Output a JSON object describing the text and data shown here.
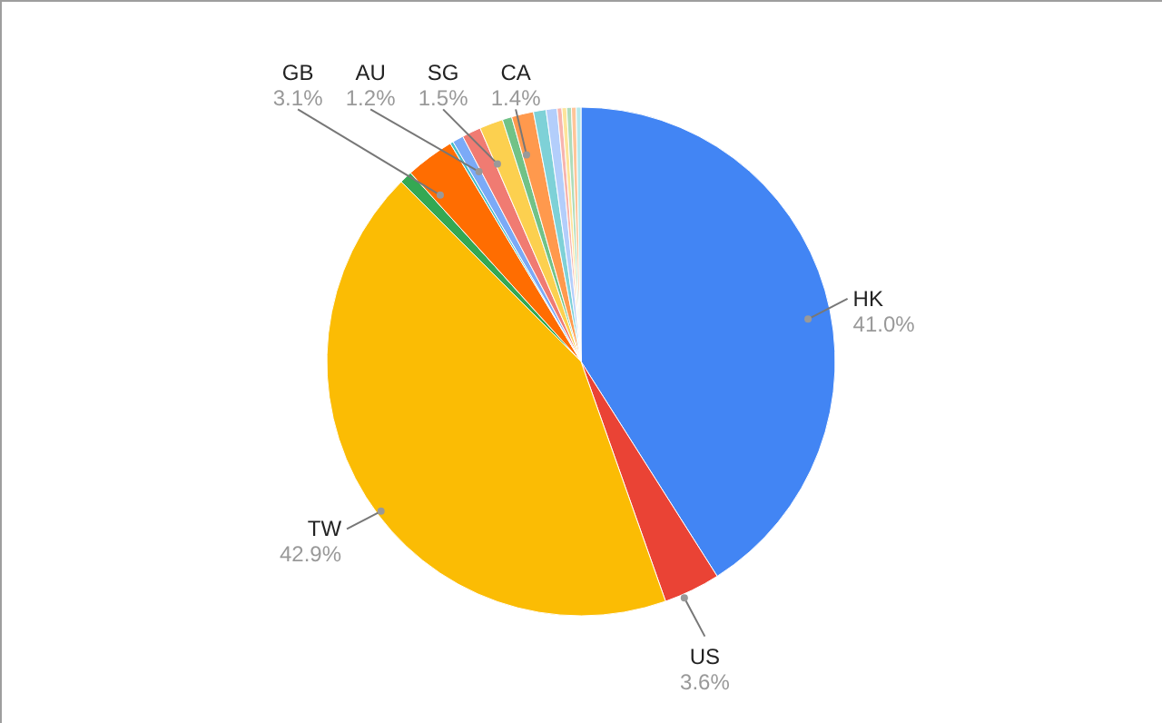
{
  "chart_data": {
    "type": "pie",
    "categories": [
      "HK",
      "US",
      "TW",
      null,
      "GB",
      null,
      null,
      "AU",
      "SG",
      null,
      "CA",
      null,
      null,
      null,
      null,
      null,
      null,
      null
    ],
    "values": [
      41.0,
      3.6,
      42.9,
      0.8,
      3.1,
      0.2,
      0.7,
      1.2,
      1.5,
      0.6,
      1.4,
      0.8,
      0.7,
      0.3,
      0.3,
      0.3,
      0.3,
      0.3
    ],
    "value_labels": [
      "41.0%",
      "3.6%",
      "42.9%",
      null,
      "3.1%",
      null,
      null,
      "1.2%",
      "1.5%",
      null,
      "1.4%",
      null,
      null,
      null,
      null,
      null,
      null,
      null
    ],
    "colors": [
      "#4285f4",
      "#ea4335",
      "#fbbc04",
      "#34a853",
      "#ff6d01",
      "#46bdc6",
      "#7baaf7",
      "#f07b72",
      "#fcd04f",
      "#71c287",
      "#ff994d",
      "#7ed1d7",
      "#b3cefb",
      "#f7b4ae",
      "#fde49b",
      "#aedcba",
      "#ffc599",
      "#b5e8eb"
    ]
  }
}
